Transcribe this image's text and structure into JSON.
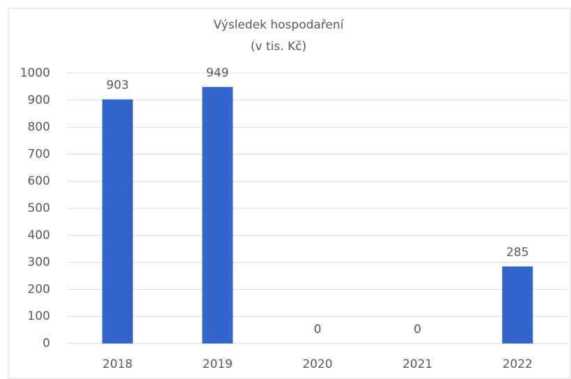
{
  "chart_data": {
    "type": "bar",
    "title": "Výsledek hospodaření",
    "subtitle": "(v tis. Kč)",
    "categories": [
      "2018",
      "2019",
      "2020",
      "2021",
      "2022"
    ],
    "values": [
      903,
      949,
      0,
      0,
      285
    ],
    "color": "#3366cc",
    "ylim": [
      0,
      1000
    ],
    "yticks": [
      0,
      100,
      200,
      300,
      400,
      500,
      600,
      700,
      800,
      900,
      1000
    ],
    "grid": true
  }
}
